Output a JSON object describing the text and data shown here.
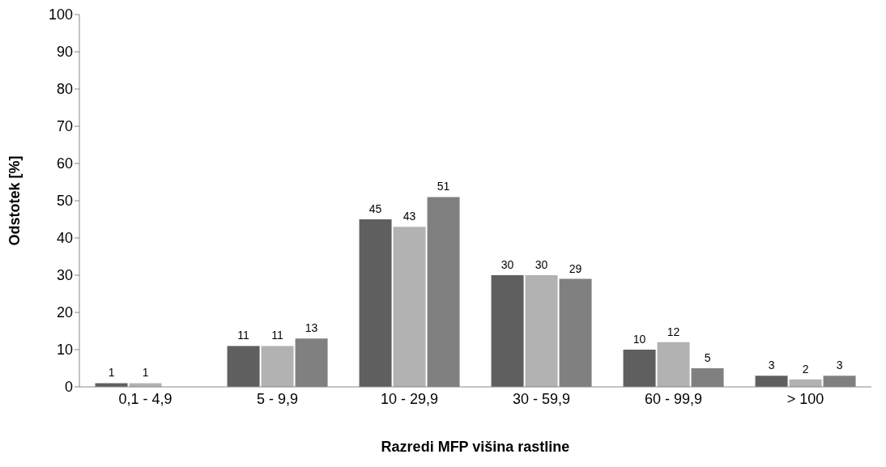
{
  "chart_data": {
    "type": "bar",
    "xlabel": "Razredi MFP višina rastline",
    "ylabel": "Odstotek [%]",
    "categories": [
      "0,1 - 4,9",
      "5  - 9,9",
      "10 - 29,9",
      "30 - 59,9",
      "60 - 99,9",
      "> 100"
    ],
    "series": [
      {
        "color": "#5f5f5f",
        "values": [
          1,
          11,
          45,
          30,
          10,
          3
        ]
      },
      {
        "color": "#b2b2b2",
        "values": [
          1,
          11,
          43,
          30,
          12,
          2
        ]
      },
      {
        "color": "#808080",
        "values": [
          null,
          13,
          51,
          29,
          5,
          3
        ]
      }
    ],
    "ylim": [
      0,
      100
    ],
    "yticks": [
      0,
      10,
      20,
      30,
      40,
      50,
      60,
      70,
      80,
      90,
      100
    ],
    "data_labels": true,
    "grid": false,
    "legend": false
  }
}
